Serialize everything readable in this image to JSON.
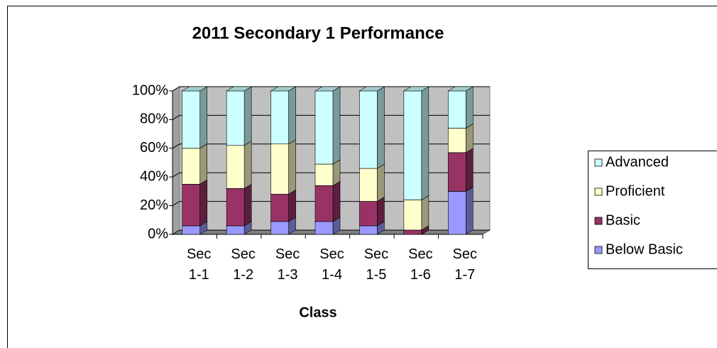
{
  "chart_data": {
    "type": "bar3d_stacked",
    "title": "2011 Secondary 1 Performance",
    "x_label": "Class",
    "categories": [
      "Sec 1-1",
      "Sec 1-2",
      "Sec 1-3",
      "Sec 1-4",
      "Sec 1-5",
      "Sec 1-6",
      "Sec 1-7"
    ],
    "series": [
      {
        "name": "Below Basic",
        "color": "#9999ff",
        "values": [
          6,
          6,
          9,
          9,
          6,
          0,
          30
        ]
      },
      {
        "name": "Basic",
        "color": "#993366",
        "values": [
          29,
          26,
          19,
          25,
          17,
          3,
          27
        ]
      },
      {
        "name": "Proficient",
        "color": "#ffffcc",
        "values": [
          25,
          30,
          35,
          15,
          23,
          21,
          17
        ]
      },
      {
        "name": "Advanced",
        "color": "#ccffff",
        "values": [
          40,
          38,
          37,
          51,
          54,
          76,
          26
        ]
      }
    ],
    "ylim": [
      0,
      100
    ],
    "yticks": [
      {
        "value": 0,
        "label": "0%"
      },
      {
        "value": 20,
        "label": "20%"
      },
      {
        "value": 40,
        "label": "40%"
      },
      {
        "value": 60,
        "label": "60%"
      },
      {
        "value": 80,
        "label": "80%"
      },
      {
        "value": 100,
        "label": "100%"
      }
    ],
    "grid": true,
    "legend": "right"
  }
}
